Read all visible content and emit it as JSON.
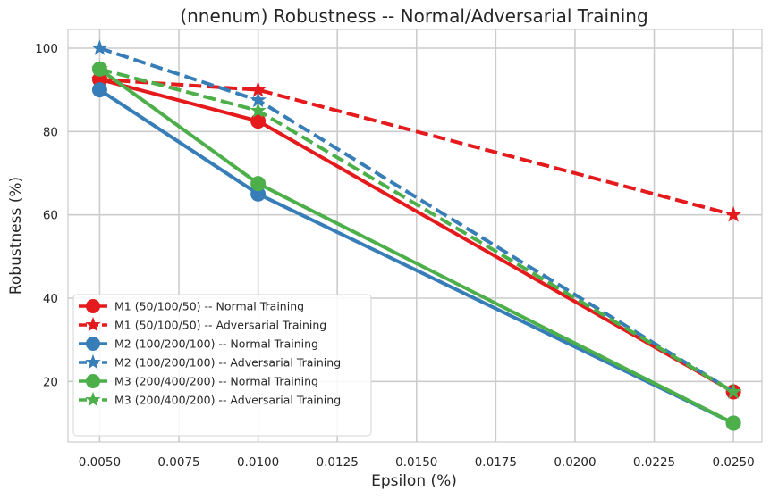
{
  "chart_data": {
    "type": "line",
    "title": "(nnenum) Robustness -- Normal/Adversarial Training",
    "xlabel": "Epsilon (%)",
    "ylabel": "Robustness (%)",
    "x": [
      0.005,
      0.01,
      0.025
    ],
    "xlim": [
      0.004,
      0.0259
    ],
    "ylim": [
      5.5,
      104.5
    ],
    "xticks": [
      0.005,
      0.0075,
      0.01,
      0.0125,
      0.015,
      0.0175,
      0.02,
      0.0225,
      0.025
    ],
    "xtick_labels": [
      "0.0050",
      "0.0075",
      "0.0100",
      "0.0125",
      "0.0150",
      "0.0175",
      "0.0200",
      "0.0225",
      "0.0250"
    ],
    "yticks": [
      20,
      40,
      60,
      80,
      100
    ],
    "ytick_labels": [
      "20",
      "40",
      "60",
      "80",
      "100"
    ],
    "grid": true,
    "legend_position": "lower-left",
    "series": [
      {
        "name": "M1 (50/100/50) -- Normal Training",
        "values": [
          92.5,
          82.5,
          17.5
        ],
        "color": "#e41a1c",
        "style": "solid",
        "marker": "circle"
      },
      {
        "name": "M1 (50/100/50) -- Adversarial Training",
        "values": [
          92.5,
          90,
          60
        ],
        "color": "#e41a1c",
        "style": "dashed",
        "marker": "star"
      },
      {
        "name": "M2 (100/200/100) -- Normal Training",
        "values": [
          90,
          65,
          10
        ],
        "color": "#377eb8",
        "style": "solid",
        "marker": "circle"
      },
      {
        "name": "M2 (100/200/100) -- Adversarial Training",
        "values": [
          100,
          87.5,
          17.5
        ],
        "color": "#377eb8",
        "style": "dashed",
        "marker": "star"
      },
      {
        "name": "M3 (200/400/200) -- Normal Training",
        "values": [
          95,
          67.5,
          10
        ],
        "color": "#4daf4a",
        "style": "solid",
        "marker": "circle"
      },
      {
        "name": "M3 (200/400/200) -- Adversarial Training",
        "values": [
          95,
          85,
          17.5
        ],
        "color": "#4daf4a",
        "style": "dashed",
        "marker": "star"
      }
    ]
  }
}
